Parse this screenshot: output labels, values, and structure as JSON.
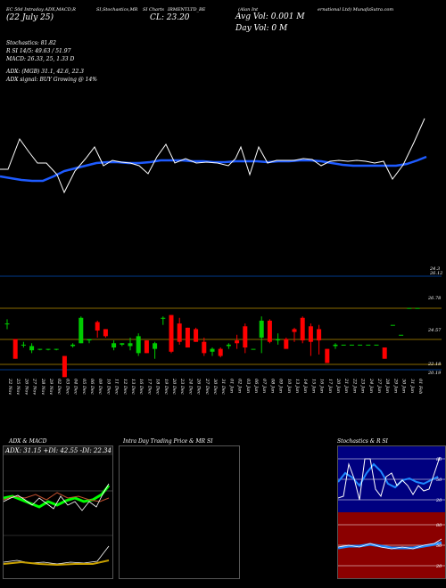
{
  "header": {
    "title_a": "EC 50d Intraday ADX,MACD,R",
    "title_b": "SI,Stochastics,MR",
    "title_c": "SI Charts",
    "title_d": "IRMENTLTD_BE",
    "title_e": "(Alan Int",
    "title_f": "ernational Ltd) MunafaSutra.com",
    "date_line": "(22 July 25)",
    "close_line": "CL: 23.20",
    "avg_vol": "Avg Vol: 0.001 M",
    "day_vol": "Day Vol: 0   M"
  },
  "stats": {
    "stochastics": "Stochastics: 81.82",
    "rsi": "R          SI 14/5: 49.63 / 51.97",
    "macd": "MACD: 26.33,  25,  1.33 D",
    "adx": "ADX:                         (MGB) 31.1, 42.6, 22.3",
    "adx_signal": "ADX  signal:                      BUY Growing @ 14%"
  },
  "price_levels": [
    "24.3",
    "26.78",
    "24.57",
    "22.18",
    "20.19",
    "26.12"
  ],
  "chart_data": [
    {
      "type": "candlestick",
      "x": [
        "22 Nov",
        "25 Nov",
        "26 Nov",
        "27 Nov",
        "28 Nov",
        "29 Nov",
        "02 Dec",
        "03 Dec",
        "04 Dec",
        "05 Dec",
        "06 Dec",
        "09 Dec",
        "10 Dec",
        "11 Dec",
        "12 Dec",
        "13 Dec",
        "16 Dec",
        "17 Dec",
        "18 Dec",
        "19 Dec",
        "20 Dec",
        "23 Dec",
        "24 Dec",
        "26 Dec",
        "27 Dec",
        "30 Dec",
        "31 Dec",
        "01 Jan",
        "02 Jan",
        "03 Jan",
        "06 Jan",
        "07 Jan",
        "08 Jan",
        "09 Jan",
        "10 Jan",
        "13 Jan",
        "14 Jan",
        "15 Jan",
        "16 Jan",
        "17 Jan",
        "20 Jan",
        "21 Jan",
        "22 Jan",
        "23 Jan",
        "24 Jan",
        "27 Jan",
        "28 Jan",
        "29 Jan",
        "30 Jan",
        "31 Jan",
        "01 Feb"
      ],
      "ohlc": [
        [
          25.7,
          26.0,
          25.3,
          25.7
        ],
        [
          24.6,
          24.6,
          23.2,
          23.2
        ],
        [
          24.2,
          24.4,
          24.0,
          24.2
        ],
        [
          23.8,
          24.3,
          23.6,
          24.1
        ],
        [
          23.9,
          23.9,
          23.8,
          23.9
        ],
        [
          23.9,
          23.9,
          23.8,
          23.9
        ],
        [
          23.9,
          23.9,
          23.8,
          23.9
        ],
        [
          23.4,
          23.4,
          21.9,
          21.9
        ],
        [
          24.1,
          24.3,
          24.0,
          24.2
        ],
        [
          24.3,
          26.2,
          24.3,
          26.1
        ],
        [
          24.5,
          24.6,
          24.3,
          24.6
        ],
        [
          25.8,
          25.9,
          24.7,
          25.2
        ],
        [
          25.3,
          25.3,
          24.7,
          24.8
        ],
        [
          24.0,
          24.5,
          23.8,
          24.3
        ],
        [
          24.2,
          24.3,
          24.1,
          24.3
        ],
        [
          24.1,
          24.7,
          23.8,
          24.3
        ],
        [
          23.6,
          25.0,
          23.4,
          24.8
        ],
        [
          24.5,
          24.5,
          23.6,
          23.6
        ],
        [
          23.9,
          24.4,
          23.2,
          24.3
        ],
        [
          26.1,
          26.2,
          25.6,
          26.1
        ],
        [
          26.3,
          26.3,
          23.6,
          23.7
        ],
        [
          25.7,
          26.1,
          24.2,
          24.4
        ],
        [
          25.4,
          25.4,
          24.0,
          24.0
        ],
        [
          25.3,
          25.4,
          24.4,
          24.4
        ],
        [
          24.4,
          24.7,
          23.4,
          23.6
        ],
        [
          23.7,
          24.0,
          23.4,
          23.9
        ],
        [
          23.9,
          24.0,
          23.3,
          23.4
        ],
        [
          24.1,
          24.3,
          23.9,
          24.2
        ],
        [
          24.5,
          24.9,
          23.9,
          24.3
        ],
        [
          25.5,
          25.7,
          23.6,
          24.0
        ],
        [
          23.9,
          23.9,
          23.9,
          23.9
        ],
        [
          24.7,
          26.2,
          23.6,
          25.9
        ],
        [
          25.9,
          26.0,
          24.3,
          24.4
        ],
        [
          24.5,
          25.0,
          24.2,
          24.6
        ],
        [
          24.6,
          24.7,
          23.9,
          23.9
        ],
        [
          25.3,
          25.4,
          24.4,
          25.1
        ],
        [
          26.1,
          26.2,
          24.3,
          24.5
        ],
        [
          25.5,
          25.7,
          23.4,
          24.4
        ],
        [
          25.3,
          25.6,
          23.5,
          24.5
        ],
        [
          23.9,
          23.9,
          22.9,
          22.9
        ],
        [
          24.1,
          24.3,
          23.9,
          24.2
        ],
        [
          24.2,
          24.2,
          24.2,
          24.2
        ],
        [
          24.2,
          24.2,
          24.2,
          24.2
        ],
        [
          24.2,
          24.2,
          24.2,
          24.2
        ],
        [
          24.2,
          24.2,
          24.2,
          24.2
        ],
        [
          24.2,
          24.2,
          24.2,
          24.2
        ],
        [
          24.0,
          24.0,
          23.2,
          23.2
        ],
        [
          25.6,
          25.6,
          25.6,
          25.6
        ],
        [
          24.9,
          24.9,
          24.9,
          24.9
        ],
        [
          26.8,
          26.8,
          26.8,
          26.8
        ],
        [
          26.8,
          26.8,
          26.8,
          26.8
        ]
      ]
    },
    {
      "type": "line",
      "title": "ADX  & MACD",
      "label": "ADX: 31.15  +DI: 42.55  -DI: 22.34"
    },
    {
      "type": "bar",
      "title": "Intra  Day Trading Price  & MR          SI"
    },
    {
      "type": "line",
      "title": "Stochastics & R                    SI",
      "ticks_top": [
        "80",
        "50",
        "20"
      ],
      "ticks_bottom": [
        "80",
        "50",
        "20"
      ]
    }
  ],
  "colors": {
    "background": "#000000",
    "up": "#00cc00",
    "down": "#ff0000",
    "avg_line": "#1e5bff",
    "price_line": "#ffffff"
  }
}
